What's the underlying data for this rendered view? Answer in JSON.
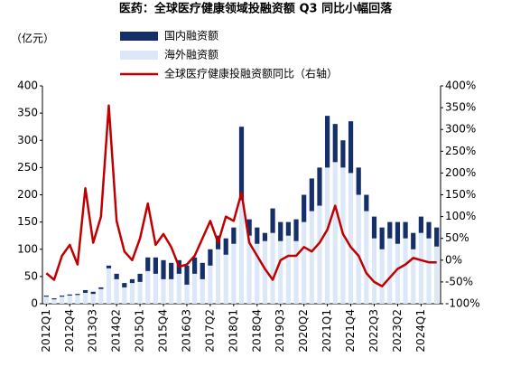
{
  "chart_data": {
    "type": "bar",
    "title": "医药：全球医疗健康领域投融资额 Q3 同比小幅回落",
    "y_label": "（亿元）",
    "stacked": true,
    "categories": [
      "2012Q1",
      null,
      null,
      "2012Q4",
      null,
      null,
      "2013Q3",
      null,
      null,
      "2014Q2",
      null,
      null,
      "2015Q1",
      null,
      null,
      "2015Q4",
      null,
      null,
      "2016Q3",
      null,
      null,
      "2017Q2",
      null,
      null,
      "2018Q1",
      null,
      null,
      "2018Q4",
      null,
      null,
      "2019Q3",
      null,
      null,
      "2020Q2",
      null,
      null,
      "2021Q1",
      null,
      null,
      "2021Q4",
      null,
      null,
      "2022Q3",
      null,
      null,
      "2023Q2",
      null,
      null,
      "2024Q1",
      null,
      null
    ],
    "series": [
      {
        "name": "海外融资额",
        "type": "bar",
        "color": "#dce8f7",
        "values": [
          13,
          8,
          13,
          15,
          16,
          20,
          18,
          27,
          65,
          45,
          30,
          38,
          40,
          60,
          55,
          45,
          45,
          55,
          35,
          55,
          45,
          70,
          100,
          90,
          110,
          190,
          125,
          110,
          115,
          130,
          115,
          125,
          115,
          150,
          170,
          180,
          250,
          260,
          250,
          240,
          200,
          170,
          120,
          100,
          120,
          110,
          120,
          100,
          130,
          120,
          105
        ]
      },
      {
        "name": "国内融资额",
        "type": "bar",
        "color": "#152f6b",
        "values": [
          2,
          2,
          2,
          2,
          2,
          5,
          4,
          3,
          5,
          10,
          8,
          7,
          15,
          25,
          30,
          35,
          30,
          25,
          35,
          30,
          30,
          30,
          25,
          30,
          30,
          135,
          30,
          30,
          15,
          45,
          35,
          25,
          40,
          50,
          60,
          70,
          95,
          70,
          50,
          95,
          50,
          30,
          40,
          40,
          30,
          40,
          30,
          30,
          30,
          30,
          35
        ]
      },
      {
        "name": "全球医疗健康投融资额同比（右轴）",
        "type": "line",
        "axis": "y2",
        "color": "#c00000",
        "values": [
          -30,
          -45,
          10,
          35,
          -10,
          165,
          40,
          100,
          355,
          90,
          20,
          0,
          50,
          130,
          35,
          60,
          30,
          -15,
          -10,
          10,
          50,
          90,
          40,
          100,
          90,
          155,
          40,
          10,
          -20,
          -45,
          0,
          10,
          10,
          30,
          20,
          40,
          70,
          125,
          60,
          30,
          10,
          -30,
          -50,
          -60,
          -40,
          -20,
          -10,
          5,
          0,
          -5,
          -5
        ]
      }
    ],
    "ylim": [
      0,
      400
    ],
    "yticks": [
      0,
      50,
      100,
      150,
      200,
      250,
      300,
      350,
      400
    ],
    "y2lim": [
      -100,
      400
    ],
    "y2ticks": [
      {
        "value": -100,
        "label": "-100%"
      },
      {
        "value": -50,
        "label": "-50%"
      },
      {
        "value": 0,
        "label": "0%"
      },
      {
        "value": 50,
        "label": "50%"
      },
      {
        "value": 100,
        "label": "100%"
      },
      {
        "value": 150,
        "label": "150%"
      },
      {
        "value": 200,
        "label": "200%"
      },
      {
        "value": 250,
        "label": "250%"
      },
      {
        "value": 300,
        "label": "300%"
      },
      {
        "value": 350,
        "label": "350%"
      },
      {
        "value": 400,
        "label": "400%"
      }
    ]
  }
}
